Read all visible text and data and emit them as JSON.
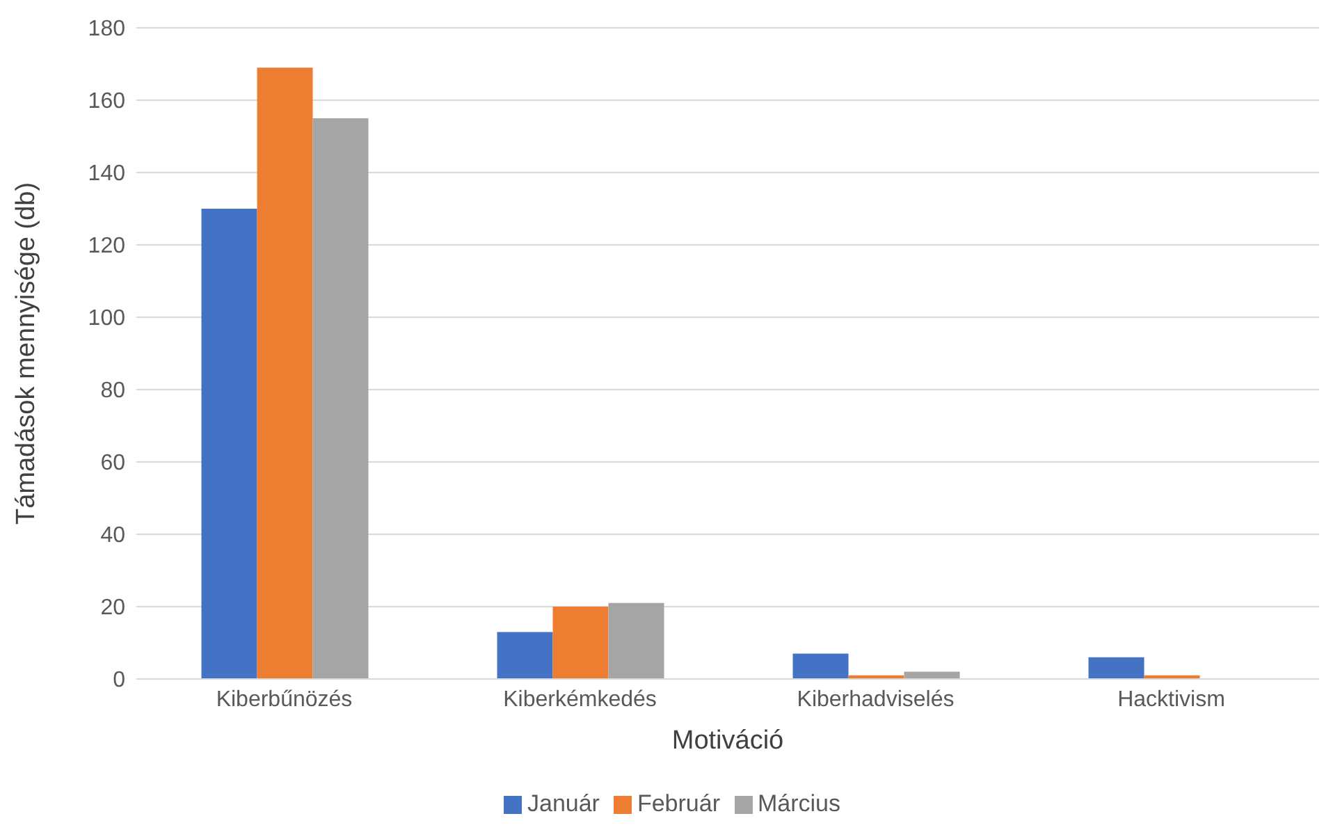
{
  "chart_data": {
    "type": "bar",
    "xlabel": "Motiváció",
    "ylabel": "Támadások mennyisége (db)",
    "categories": [
      "Kiberbűnözés",
      "Kiberkémkedés",
      "Kiberhadviselés",
      "Hacktivism"
    ],
    "series": [
      {
        "name": "Január",
        "color": "#4472c4",
        "values": [
          130,
          13,
          7,
          6
        ]
      },
      {
        "name": "Február",
        "color": "#ed7d31",
        "values": [
          169,
          20,
          1,
          1
        ]
      },
      {
        "name": "Március",
        "color": "#a5a5a5",
        "values": [
          155,
          21,
          2,
          0
        ]
      }
    ],
    "ylim": [
      0,
      180
    ],
    "yticks": [
      0,
      20,
      40,
      60,
      80,
      100,
      120,
      140,
      160,
      180
    ],
    "grid": "y",
    "legend": "bottom"
  }
}
